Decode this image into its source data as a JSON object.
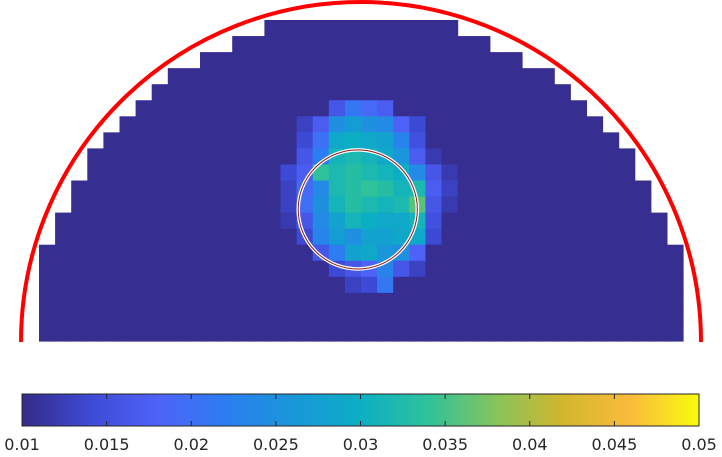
{
  "chart_data": {
    "type": "heatmap",
    "title": "",
    "xlabel": "",
    "ylabel": "",
    "colormap": "parula",
    "background_value": 0.0105,
    "semicircle_color": "#ff0000",
    "inclusion_ring_colors": [
      "#ffffff",
      "#8b1a1a"
    ],
    "grid": {
      "rows": 20,
      "cols": 40,
      "row_spans": [
        [
          14,
          25
        ],
        [
          12,
          27
        ],
        [
          10,
          29
        ],
        [
          8,
          31
        ],
        [
          7,
          32
        ],
        [
          6,
          33
        ],
        [
          5,
          34
        ],
        [
          4,
          35
        ],
        [
          3,
          36
        ],
        [
          3,
          36
        ],
        [
          2,
          37
        ],
        [
          2,
          37
        ],
        [
          1,
          38
        ],
        [
          1,
          38
        ],
        [
          0,
          39
        ],
        [
          0,
          39
        ],
        [
          0,
          39
        ],
        [
          0,
          39
        ],
        [
          0,
          39
        ],
        [
          0,
          39
        ]
      ],
      "hot_cells": [
        [
          5,
          18,
          0.016
        ],
        [
          5,
          19,
          0.021
        ],
        [
          5,
          20,
          0.019
        ],
        [
          5,
          21,
          0.017
        ],
        [
          6,
          16,
          0.013
        ],
        [
          6,
          17,
          0.017
        ],
        [
          6,
          18,
          0.025
        ],
        [
          6,
          19,
          0.027
        ],
        [
          6,
          20,
          0.025
        ],
        [
          6,
          21,
          0.024
        ],
        [
          6,
          22,
          0.018
        ],
        [
          6,
          23,
          0.014
        ],
        [
          7,
          16,
          0.014
        ],
        [
          7,
          17,
          0.02
        ],
        [
          7,
          18,
          0.029
        ],
        [
          7,
          19,
          0.03
        ],
        [
          7,
          20,
          0.029
        ],
        [
          7,
          21,
          0.028
        ],
        [
          7,
          22,
          0.023
        ],
        [
          7,
          23,
          0.015
        ],
        [
          8,
          16,
          0.016
        ],
        [
          8,
          17,
          0.022
        ],
        [
          8,
          18,
          0.031
        ],
        [
          8,
          19,
          0.032
        ],
        [
          8,
          20,
          0.031
        ],
        [
          8,
          21,
          0.029
        ],
        [
          8,
          22,
          0.026
        ],
        [
          8,
          23,
          0.017
        ],
        [
          8,
          24,
          0.012
        ],
        [
          9,
          15,
          0.014
        ],
        [
          9,
          16,
          0.017
        ],
        [
          9,
          17,
          0.034
        ],
        [
          9,
          18,
          0.032
        ],
        [
          9,
          19,
          0.033
        ],
        [
          9,
          20,
          0.032
        ],
        [
          9,
          21,
          0.031
        ],
        [
          9,
          22,
          0.03
        ],
        [
          9,
          23,
          0.024
        ],
        [
          9,
          24,
          0.016
        ],
        [
          9,
          25,
          0.012
        ],
        [
          10,
          15,
          0.013
        ],
        [
          10,
          16,
          0.019
        ],
        [
          10,
          17,
          0.024
        ],
        [
          10,
          18,
          0.032
        ],
        [
          10,
          19,
          0.033
        ],
        [
          10,
          20,
          0.034
        ],
        [
          10,
          21,
          0.033
        ],
        [
          10,
          22,
          0.031
        ],
        [
          10,
          23,
          0.032
        ],
        [
          10,
          24,
          0.017
        ],
        [
          10,
          25,
          0.013
        ],
        [
          11,
          15,
          0.013
        ],
        [
          11,
          16,
          0.02
        ],
        [
          11,
          17,
          0.025
        ],
        [
          11,
          18,
          0.031
        ],
        [
          11,
          19,
          0.033
        ],
        [
          11,
          20,
          0.032
        ],
        [
          11,
          21,
          0.031
        ],
        [
          11,
          22,
          0.032
        ],
        [
          11,
          23,
          0.036
        ],
        [
          11,
          24,
          0.016
        ],
        [
          11,
          25,
          0.012
        ],
        [
          12,
          15,
          0.012
        ],
        [
          12,
          16,
          0.016
        ],
        [
          12,
          17,
          0.024
        ],
        [
          12,
          18,
          0.028
        ],
        [
          12,
          19,
          0.031
        ],
        [
          12,
          20,
          0.03
        ],
        [
          12,
          21,
          0.029
        ],
        [
          12,
          22,
          0.029
        ],
        [
          12,
          23,
          0.031
        ],
        [
          12,
          24,
          0.015
        ],
        [
          13,
          16,
          0.014
        ],
        [
          13,
          17,
          0.023
        ],
        [
          13,
          18,
          0.027
        ],
        [
          13,
          19,
          0.025
        ],
        [
          13,
          20,
          0.028
        ],
        [
          13,
          21,
          0.028
        ],
        [
          13,
          22,
          0.029
        ],
        [
          13,
          23,
          0.029
        ],
        [
          13,
          24,
          0.014
        ],
        [
          14,
          17,
          0.016
        ],
        [
          14,
          18,
          0.022
        ],
        [
          14,
          19,
          0.028
        ],
        [
          14,
          20,
          0.029
        ],
        [
          14,
          21,
          0.026
        ],
        [
          14,
          22,
          0.025
        ],
        [
          14,
          23,
          0.018
        ],
        [
          15,
          18,
          0.014
        ],
        [
          15,
          19,
          0.016
        ],
        [
          15,
          20,
          0.018
        ],
        [
          15,
          21,
          0.023
        ],
        [
          15,
          22,
          0.016
        ],
        [
          15,
          23,
          0.013
        ],
        [
          16,
          19,
          0.013
        ],
        [
          16,
          20,
          0.014
        ],
        [
          16,
          21,
          0.021
        ]
      ]
    },
    "inclusion": {
      "center_col": 19.8,
      "center_row": 11.8,
      "radius_cells": 3.7
    },
    "colorbar": {
      "range": [
        0.01,
        0.05
      ],
      "ticks": [
        0.01,
        0.015,
        0.02,
        0.025,
        0.03,
        0.035,
        0.04,
        0.045,
        0.05
      ],
      "tick_labels": [
        "0.01",
        "0.015",
        "0.02",
        "0.025",
        "0.03",
        "0.035",
        "0.04",
        "0.045",
        "0.05"
      ]
    }
  }
}
